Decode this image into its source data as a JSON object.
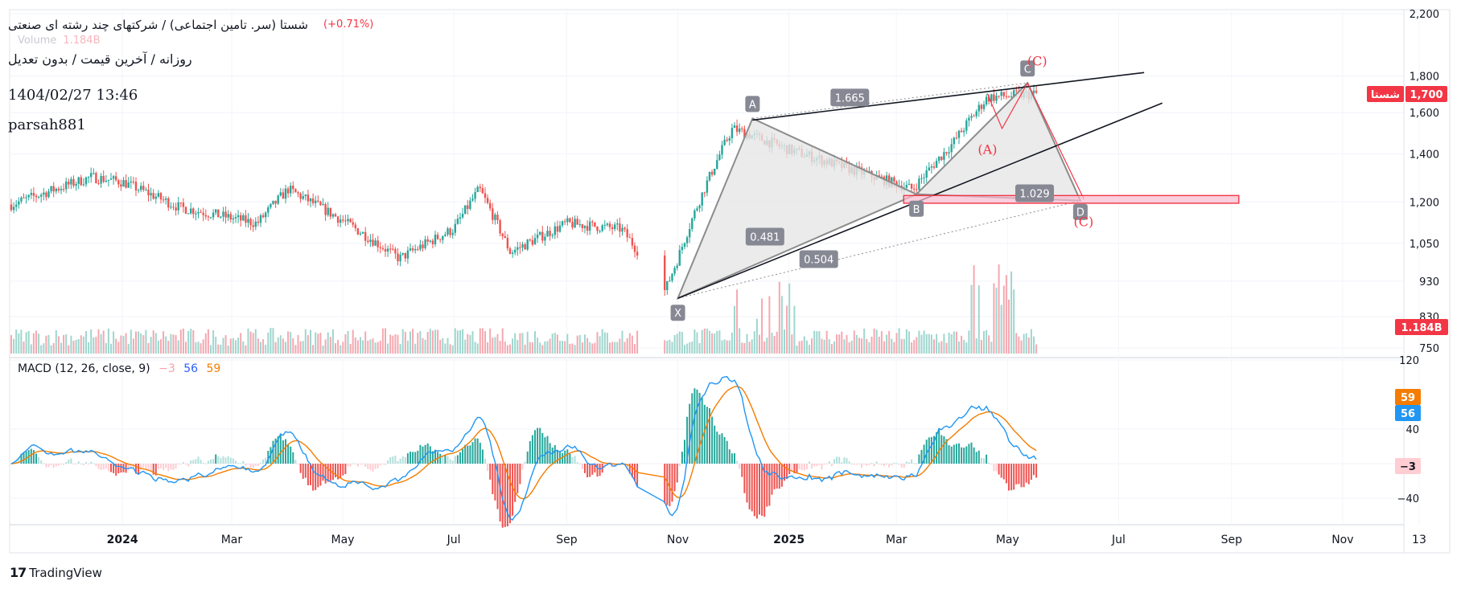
{
  "header": {
    "title": "شستا (سر. تامین اجتماعی) / شرکتهای چند رشته ای صنعتی",
    "change": "(+0.71%)",
    "volume_label": "Volume",
    "volume_value": "1.184B",
    "subtitle": "روزانه / آخرین قیمت / بدون تعدیل",
    "datetime": "1404/02/27 13:46",
    "author": "parsah881"
  },
  "brand": {
    "logo": "17",
    "name": "TradingView"
  },
  "colors": {
    "up": "#26a69a",
    "down": "#ef5350",
    "volume_up": "#9fd6ce",
    "volume_down": "#f5a8b0",
    "macd": "#2196f3",
    "signal": "#f57c00",
    "hist_up_strong": "#26a69a",
    "hist_up_weak": "#b2dfdb",
    "hist_down_strong": "#ef5350",
    "hist_down_weak": "#ffcdd2",
    "pattern_fill": "#e6e6e6",
    "pattern_line": "#8c8c8c",
    "prz": "#f23645",
    "trendline": "#131722"
  },
  "chart_data": [
    {
      "type": "candlestick",
      "symbol": "شستا",
      "price_axis_ticks": [
        "2,200",
        "1,800",
        "1,600",
        "1,400",
        "1,200",
        "1,050",
        "930",
        "830",
        "750"
      ],
      "price_scale": "log",
      "time_axis_ticks": [
        "2024",
        "Mar",
        "May",
        "Jul",
        "Sep",
        "Nov",
        "2025",
        "Mar",
        "May",
        "Jul",
        "Sep",
        "Nov",
        "13"
      ],
      "last_price_label": "1,700",
      "symbol_badge": "شستا",
      "volume_badge": "1.184B",
      "approx_close_path": [
        {
          "date": "2023-11",
          "close": 1190
        },
        {
          "date": "2023-12-15",
          "close": 1300
        },
        {
          "date": "2024-01",
          "close": 1280
        },
        {
          "date": "2024-02",
          "close": 1180
        },
        {
          "date": "2024-03-15",
          "close": 1120
        },
        {
          "date": "2024-04",
          "close": 1250
        },
        {
          "date": "2024-05",
          "close": 1130
        },
        {
          "date": "2024-06",
          "close": 1000
        },
        {
          "date": "2024-07",
          "close": 1100
        },
        {
          "date": "2024-07-15",
          "close": 1250
        },
        {
          "date": "2024-08",
          "close": 1020
        },
        {
          "date": "2024-09",
          "close": 1120
        },
        {
          "date": "2024-10",
          "close": 1100
        },
        {
          "date": "2024-10-25",
          "close": 900
        },
        {
          "date": "2024-11",
          "close": 1000
        },
        {
          "date": "2024-12",
          "close": 1520
        },
        {
          "date": "2025-01",
          "close": 1420
        },
        {
          "date": "2025-02",
          "close": 1340
        },
        {
          "date": "2025-03-10",
          "close": 1250
        },
        {
          "date": "2025-04",
          "close": 1450
        },
        {
          "date": "2025-04-20",
          "close": 1680
        },
        {
          "date": "2025-05-17",
          "close": 1700
        }
      ],
      "harmonic_pattern": {
        "points": [
          {
            "label": "X",
            "date": "2024-11-01",
            "price": 880
          },
          {
            "label": "A",
            "date": "2024-12-12",
            "price": 1570
          },
          {
            "label": "B",
            "date": "2025-03-12",
            "price": 1230
          },
          {
            "label": "C",
            "date": "2025-05-12",
            "price": 1760
          },
          {
            "label": "D",
            "date": "2025-06-10",
            "price": 1205
          }
        ],
        "ratios": [
          {
            "label": "1.665",
            "between": "B-D / A-C"
          },
          {
            "label": "1.029",
            "between": "C-D"
          },
          {
            "label": "0.481",
            "between": "X-B"
          },
          {
            "label": "0.504",
            "between": "X-D"
          }
        ],
        "wave_labels": [
          {
            "label": "(C)",
            "point": "C"
          },
          {
            "label": "(A)",
            "date": "2025-04-20",
            "price": 1400
          },
          {
            "label": "(C)",
            "point": "D"
          }
        ],
        "prz_zone": {
          "from": "2025-03-05",
          "to": "2025-09-05",
          "low": 1195,
          "high": 1225
        }
      }
    },
    {
      "type": "macd",
      "title": "MACD (12, 26, close, 9)",
      "values": {
        "histogram": -3,
        "macd": 56,
        "signal": 59
      },
      "legend": [
        "−3",
        "56",
        "59"
      ],
      "axis_ticks": [
        "120",
        "40",
        "−40"
      ],
      "badges": {
        "macd": "56",
        "signal": "59",
        "histogram": "−3"
      }
    }
  ]
}
